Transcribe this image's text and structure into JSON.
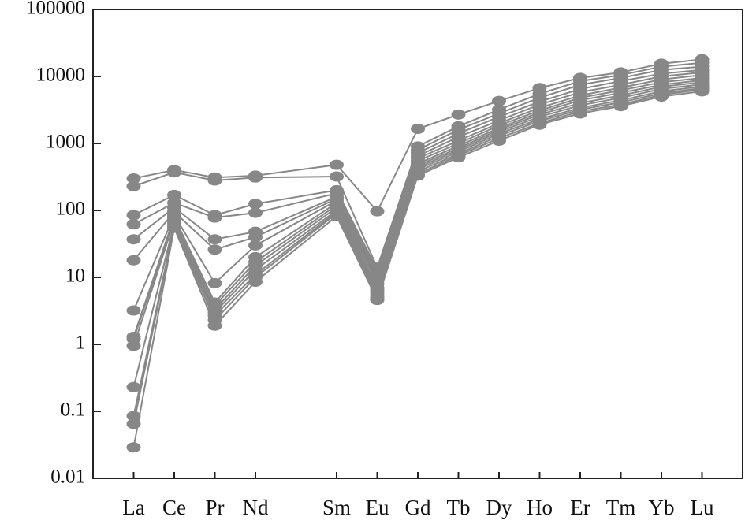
{
  "chart_data": {
    "type": "line",
    "log_scale": true,
    "color": "#878787",
    "x": [
      1,
      2,
      3,
      4,
      6,
      7,
      8,
      9,
      10,
      11,
      12,
      13,
      14,
      15
    ],
    "xlim": [
      0,
      16
    ],
    "xticks": [
      {
        "value": 1,
        "label": "La"
      },
      {
        "value": 2,
        "label": "Ce"
      },
      {
        "value": 3,
        "label": "Pr"
      },
      {
        "value": 4,
        "label": "Nd"
      },
      {
        "value": 6,
        "label": "Sm"
      },
      {
        "value": 7,
        "label": "Eu"
      },
      {
        "value": 8,
        "label": "Gd"
      },
      {
        "value": 9,
        "label": "Tb"
      },
      {
        "value": 10,
        "label": "Dy"
      },
      {
        "value": 11,
        "label": "Ho"
      },
      {
        "value": 12,
        "label": "Er"
      },
      {
        "value": 13,
        "label": "Tm"
      },
      {
        "value": 14,
        "label": "Yb"
      },
      {
        "value": 15,
        "label": "Lu"
      }
    ],
    "ylim": [
      0.01,
      100000
    ],
    "yticks": [
      0.01,
      0.1,
      1,
      10,
      100,
      1000,
      10000,
      100000
    ],
    "series": [
      {
        "values": [
          300,
          400,
          310,
          330,
          480,
          97,
          1650,
          2700,
          4300,
          6700,
          9500,
          11500,
          15500,
          18000
        ]
      },
      {
        "values": [
          230,
          370,
          280,
          310,
          320,
          14,
          900,
          1800,
          3200,
          5500,
          8500,
          10500,
          14000,
          16000
        ]
      },
      {
        "values": [
          85,
          170,
          85,
          125,
          200,
          13,
          800,
          1600,
          2800,
          4800,
          7500,
          9500,
          12500,
          14000
        ]
      },
      {
        "values": [
          62,
          130,
          78,
          92,
          180,
          12,
          720,
          1400,
          2500,
          4200,
          6500,
          8500,
          11000,
          12500
        ]
      },
      {
        "values": [
          37,
          110,
          37,
          48,
          160,
          11,
          650,
          1250,
          2200,
          3800,
          5800,
          7500,
          10000,
          11500
        ]
      },
      {
        "values": [
          18,
          95,
          26,
          40,
          150,
          10,
          600,
          1100,
          2000,
          3400,
          5200,
          6800,
          9000,
          10500
        ]
      },
      {
        "values": [
          3.2,
          85,
          8.2,
          30,
          140,
          9,
          550,
          1000,
          1850,
          3100,
          4800,
          6200,
          8200,
          9500
        ]
      },
      {
        "values": [
          1.3,
          80,
          4.2,
          20,
          130,
          8,
          500,
          920,
          1700,
          2900,
          4400,
          5700,
          7500,
          8800
        ]
      },
      {
        "values": [
          1.2,
          75,
          3.8,
          17,
          120,
          7,
          470,
          850,
          1600,
          2700,
          4000,
          5200,
          7000,
          8200
        ]
      },
      {
        "values": [
          0.95,
          70,
          3.3,
          15,
          110,
          6.5,
          440,
          800,
          1500,
          2500,
          3700,
          4800,
          6500,
          7600
        ]
      },
      {
        "values": [
          0.23,
          65,
          3.0,
          13,
          100,
          6,
          410,
          750,
          1400,
          2300,
          3400,
          4400,
          6000,
          7100
        ]
      },
      {
        "values": [
          0.085,
          60,
          2.7,
          11,
          95,
          5.5,
          380,
          700,
          1300,
          2150,
          3200,
          4100,
          5600,
          6700
        ]
      },
      {
        "values": [
          0.065,
          58,
          2.3,
          10,
          90,
          5,
          350,
          660,
          1200,
          2000,
          3000,
          3800,
          5300,
          6400
        ]
      },
      {
        "values": [
          0.029,
          55,
          1.9,
          8.6,
          82,
          4.6,
          330,
          620,
          1100,
          1900,
          2800,
          3600,
          5000,
          6000
        ]
      }
    ]
  }
}
